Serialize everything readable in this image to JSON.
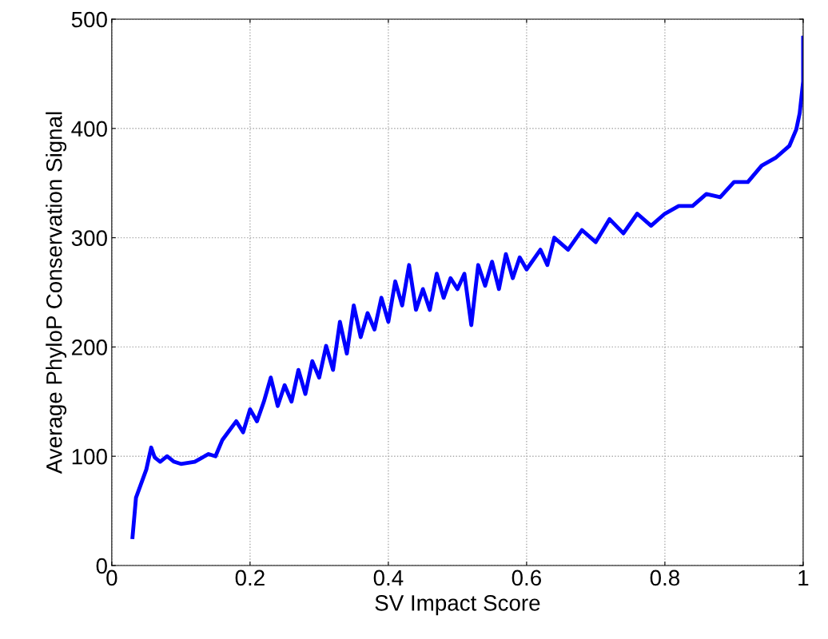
{
  "chart_data": {
    "type": "line",
    "xlabel": "SV Impact Score",
    "ylabel": "Average PhyloP Conservation Signal",
    "xlim": [
      0,
      1
    ],
    "xticks": [
      0,
      0.2,
      0.4,
      0.6,
      0.8,
      1
    ],
    "ylim": [
      0,
      500
    ],
    "yticks": [
      0,
      100,
      200,
      300,
      400,
      500
    ],
    "grid": true,
    "line_style": "solid",
    "marker": "none",
    "series": [
      {
        "color": "#0000ff",
        "x": [
          0.03,
          0.035,
          0.05,
          0.057,
          0.062,
          0.07,
          0.08,
          0.09,
          0.1,
          0.12,
          0.14,
          0.15,
          0.16,
          0.18,
          0.19,
          0.2,
          0.21,
          0.22,
          0.23,
          0.24,
          0.25,
          0.26,
          0.27,
          0.28,
          0.29,
          0.3,
          0.31,
          0.32,
          0.33,
          0.34,
          0.35,
          0.36,
          0.37,
          0.38,
          0.39,
          0.4,
          0.41,
          0.42,
          0.43,
          0.44,
          0.45,
          0.46,
          0.47,
          0.48,
          0.49,
          0.5,
          0.51,
          0.52,
          0.53,
          0.54,
          0.55,
          0.56,
          0.57,
          0.58,
          0.59,
          0.6,
          0.62,
          0.63,
          0.64,
          0.66,
          0.68,
          0.7,
          0.72,
          0.74,
          0.76,
          0.78,
          0.8,
          0.82,
          0.84,
          0.86,
          0.88,
          0.9,
          0.92,
          0.94,
          0.96,
          0.98,
          0.99,
          0.995,
          1.0,
          1.0
        ],
        "values": [
          26,
          62,
          88,
          108,
          99,
          95,
          100,
          95,
          93,
          95,
          102,
          100,
          115,
          132,
          122,
          143,
          132,
          150,
          172,
          146,
          165,
          150,
          179,
          157,
          187,
          172,
          201,
          179,
          223,
          194,
          238,
          209,
          231,
          216,
          245,
          223,
          260,
          238,
          275,
          234,
          253,
          234,
          267,
          245,
          263,
          253,
          267,
          220,
          275,
          256,
          278,
          253,
          285,
          263,
          282,
          271,
          289,
          275,
          300,
          289,
          307,
          296,
          317,
          304,
          322,
          311,
          322,
          329,
          329,
          340,
          337,
          351,
          351,
          366,
          373,
          384,
          399,
          414,
          443,
          483
        ]
      }
    ]
  }
}
